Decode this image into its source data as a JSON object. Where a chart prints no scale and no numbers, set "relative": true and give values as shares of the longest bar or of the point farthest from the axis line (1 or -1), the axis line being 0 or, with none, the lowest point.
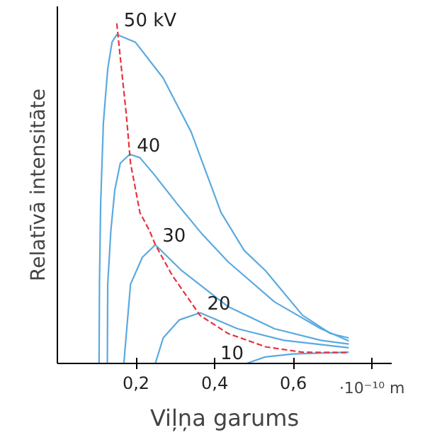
{
  "chart_data": {
    "type": "line",
    "xlabel": "Viļņa garums",
    "ylabel": "Relatīvā intensitāte",
    "relative": true,
    "grid": false,
    "marker": "none",
    "xlim": [
      0,
      0.85
    ],
    "xticks": [
      {
        "value": 0.2,
        "label": "0,2"
      },
      {
        "value": 0.4,
        "label": "0,4"
      },
      {
        "value": 0.6,
        "label": "0,6"
      },
      {
        "value": 0.8,
        "label": null
      }
    ],
    "series": [
      {
        "name": "50 kV",
        "color": "#5aaae0",
        "x": [
          0.106,
          0.107,
          0.11,
          0.117,
          0.128,
          0.139,
          0.151,
          0.198,
          0.269,
          0.34,
          0.416,
          0.475,
          0.529,
          0.623,
          0.694,
          0.741
        ],
        "values": [
          0,
          0.233,
          0.47,
          0.708,
          0.866,
          0.945,
          0.967,
          0.945,
          0.839,
          0.681,
          0.444,
          0.332,
          0.273,
          0.142,
          0.088,
          0.075
        ]
      },
      {
        "name": "40",
        "color": "#5aaae0",
        "x": [
          0.127,
          0.128,
          0.136,
          0.146,
          0.16,
          0.184,
          0.21,
          0.245,
          0.304,
          0.369,
          0.434,
          0.552,
          0.67,
          0.741
        ],
        "values": [
          0,
          0.233,
          0.391,
          0.51,
          0.589,
          0.615,
          0.605,
          0.557,
          0.47,
          0.379,
          0.299,
          0.181,
          0.102,
          0.066
        ]
      },
      {
        "name": "30",
        "color": "#5aaae0",
        "x": [
          0.169,
          0.186,
          0.216,
          0.249,
          0.316,
          0.434,
          0.552,
          0.67,
          0.741
        ],
        "values": [
          0,
          0.233,
          0.312,
          0.349,
          0.273,
          0.167,
          0.102,
          0.068,
          0.057
        ]
      },
      {
        "name": "20",
        "color": "#5aaae0",
        "x": [
          0.249,
          0.269,
          0.31,
          0.363,
          0.458,
          0.576,
          0.741
        ],
        "values": [
          0,
          0.075,
          0.128,
          0.149,
          0.102,
          0.068,
          0.046
        ]
      },
      {
        "name": "10",
        "color": "#5aaae0",
        "x": [
          0.481,
          0.528,
          0.599,
          0.741
        ],
        "values": [
          0,
          0.019,
          0.028,
          0.033
        ]
      },
      {
        "color": "#e8323c",
        "line_style": "dashed",
        "x": [
          0.151,
          0.163,
          0.175,
          0.186,
          0.21,
          0.234,
          0.249,
          0.292,
          0.363,
          0.434,
          0.529,
          0.623,
          0.741
        ],
        "values": [
          1.0,
          0.866,
          0.735,
          0.589,
          0.443,
          0.391,
          0.349,
          0.259,
          0.141,
          0.088,
          0.049,
          0.033,
          0.032
        ]
      }
    ],
    "annotations": [
      "·10⁻¹⁰ m"
    ]
  }
}
